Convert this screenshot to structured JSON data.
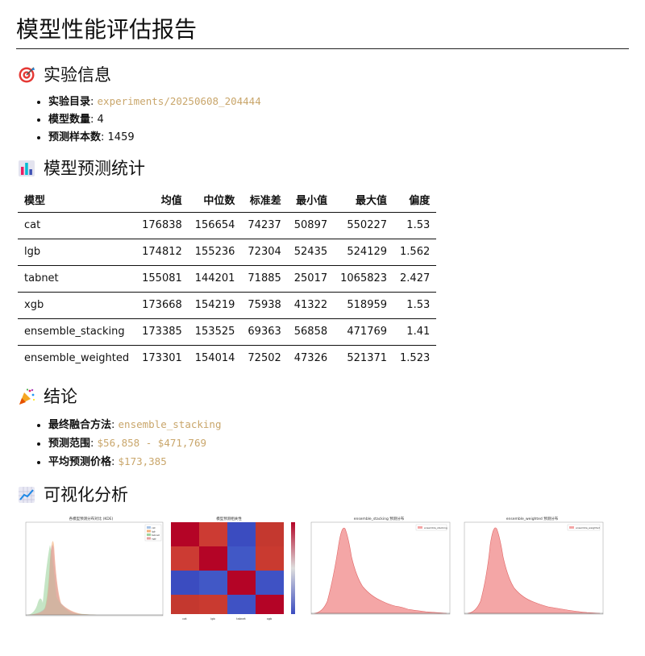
{
  "title": "模型性能评估报告",
  "sections": {
    "experiment": {
      "heading": "实验信息",
      "icon": "target-icon",
      "dir_label": "实验目录",
      "dir_value": "experiments/20250608_204444",
      "count_label": "模型数量",
      "count_value": "4",
      "samples_label": "预测样本数",
      "samples_value": "1459"
    },
    "stats": {
      "heading": "模型预测统计",
      "icon": "bar-chart-icon",
      "headers": [
        "模型",
        "均值",
        "中位数",
        "标准差",
        "最小值",
        "最大值",
        "偏度"
      ],
      "rows": [
        [
          "cat",
          "176838",
          "156654",
          "74237",
          "50897",
          "550227",
          "1.53"
        ],
        [
          "lgb",
          "174812",
          "155236",
          "72304",
          "52435",
          "524129",
          "1.562"
        ],
        [
          "tabnet",
          "155081",
          "144201",
          "71885",
          "25017",
          "1065823",
          "2.427"
        ],
        [
          "xgb",
          "173668",
          "154219",
          "75938",
          "41322",
          "518959",
          "1.53"
        ],
        [
          "ensemble_stacking",
          "173385",
          "153525",
          "69363",
          "56858",
          "471769",
          "1.41"
        ],
        [
          "ensemble_weighted",
          "173301",
          "154014",
          "72502",
          "47326",
          "521371",
          "1.523"
        ]
      ]
    },
    "conclusion": {
      "heading": "结论",
      "icon": "party-popper-icon",
      "method_label": "最终融合方法",
      "method_value": "ensemble_stacking",
      "range_label": "预测范围",
      "range_value": "$56,858 - $471,769",
      "avg_label": "平均预测价格",
      "avg_value": "$173,385"
    },
    "viz": {
      "heading": "可视化分析",
      "icon": "trend-chart-icon",
      "thumb1_title": "各模型预测分布对比 (KDE)",
      "thumb1_legend": [
        "cat",
        "lgb",
        "tabnet",
        "xgb"
      ],
      "thumb2_title": "模型预测相关性",
      "thumb2_axis": [
        "cat",
        "lgb",
        "tabnet",
        "xgb"
      ],
      "thumb3_title": "ensemble_stacking 预测分布",
      "thumb3_legend": "ensemble_stacking",
      "thumb4_title": "ensemble_weighted 预测分布",
      "thumb4_legend": "ensemble_weighted"
    }
  },
  "colors": {
    "code": "#c9a66b",
    "heat_red": "#b40426",
    "heat_blue": "#3b4cc0",
    "kde_fill": "#f4a6a6"
  }
}
